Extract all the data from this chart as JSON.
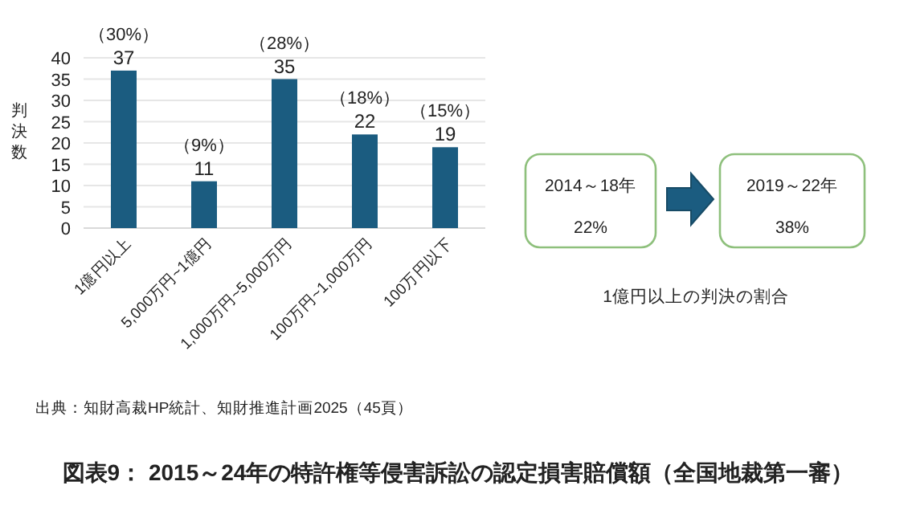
{
  "chart_data": [
    {
      "type": "bar",
      "title": "図表9： 2015～24年の特許権等侵害訴訟の認定損害賠償額（全国地裁第一審）",
      "ylabel": "判決数",
      "categories": [
        "1億円以上",
        "5,000万円~1億円",
        "1,000万円~5,000万円",
        "100万円~1,000万円",
        "100万円以下"
      ],
      "values": [
        37,
        11,
        35,
        22,
        19
      ],
      "color": "#1b5c80",
      "data_labels": true,
      "grid": "y",
      "ylim": [
        0,
        40
      ],
      "yticks": [
        0,
        5,
        10,
        15,
        20,
        25,
        30,
        35,
        40
      ],
      "annotations": [
        {
          "text": "（30%）",
          "x": "1億円以上",
          "y": 37
        },
        {
          "text": "（9%）",
          "x": "5,000万円~1億円",
          "y": 11
        },
        {
          "text": "（28%）",
          "x": "1,000万円~5,000万円",
          "y": 35
        },
        {
          "text": "（18%）",
          "x": "100万円~1,000万円",
          "y": 22
        },
        {
          "text": "（15%）",
          "x": "100万円以下",
          "y": 19
        },
        "出典：知財高裁HP統計、知財推進計画2025（45頁）"
      ]
    },
    {
      "type": "other",
      "title": "1億円以上の判決の割合",
      "annotations": [
        "2014～18年",
        "22%",
        "2019～22年",
        "38%"
      ]
    }
  ]
}
